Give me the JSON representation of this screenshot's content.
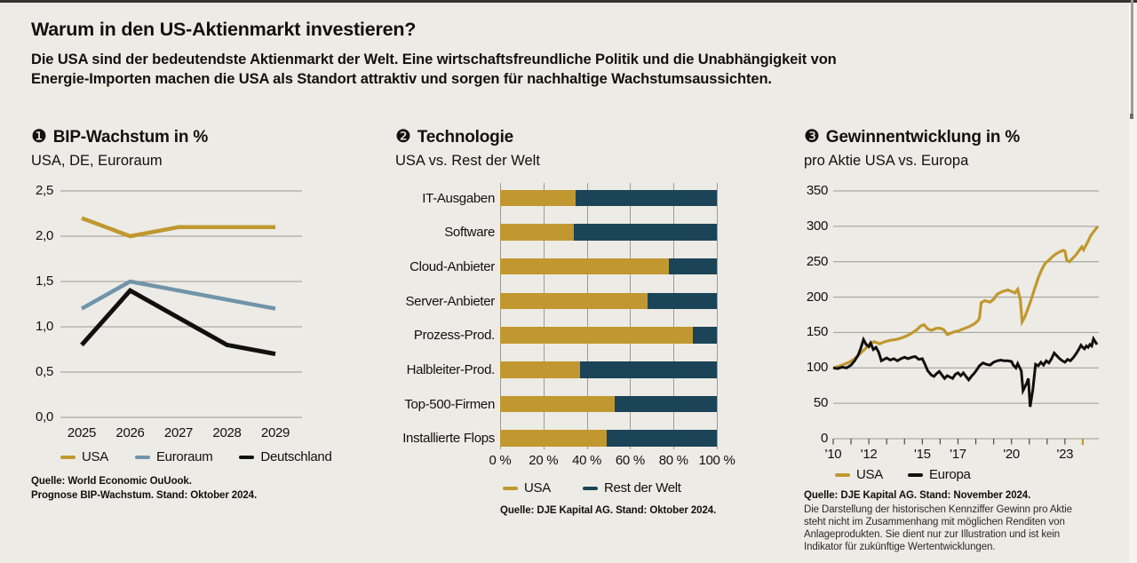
{
  "frame": {
    "top_bar_color": "#34332f",
    "right_rail_color": "#f4f3ef",
    "scroll_line_color": "#9d9d99",
    "scroll_line_cap_color": "#6f6f6b"
  },
  "colors": {
    "background": "#edebe5",
    "text": "#111111",
    "subtext": "#1c1c1c",
    "gold": "#c0982f",
    "blue": "#7094aa",
    "black": "#101010",
    "teal": "#1b4458",
    "grid": "#9b9a95",
    "axis_tick": "#4a4a46"
  },
  "header": {
    "title": "Warum in den US-Aktienmarkt investieren?",
    "subtitle_line1": "Die USA sind der bedeutendste Aktienmarkt der Welt. Eine wirtschaftsfreundliche Politik und die Unabhängigkeit von",
    "subtitle_line2": "Energie-Importen machen die USA als Standort attraktiv und sorgen für nachhaltige Wachstumsaussichten."
  },
  "chart_data": [
    {
      "id": "bip-wachstum",
      "type": "line",
      "number_glyph": "❶",
      "title": "BIP-Wachstum in %",
      "subtitle": "USA, DE, Euroraum",
      "categories": [
        "2025",
        "2026",
        "2027",
        "2028",
        "2029"
      ],
      "ylim": [
        0,
        2.5
      ],
      "yticks": [
        {
          "v": 2.5,
          "label": "2,5"
        },
        {
          "v": 2.0,
          "label": "2,0"
        },
        {
          "v": 1.5,
          "label": "1,5"
        },
        {
          "v": 1.0,
          "label": "1,0"
        },
        {
          "v": 0.5,
          "label": "0,5"
        },
        {
          "v": 0.0,
          "label": "0,0"
        }
      ],
      "series": [
        {
          "name": "USA",
          "color": "gold",
          "width": 4.5,
          "values": [
            2.2,
            2.0,
            2.1,
            2.1,
            2.1
          ]
        },
        {
          "name": "Euroraum",
          "color": "blue",
          "width": 4.5,
          "values": [
            1.2,
            1.5,
            1.4,
            1.3,
            1.2
          ]
        },
        {
          "name": "Deutschland",
          "color": "black",
          "width": 5,
          "values": [
            0.8,
            1.4,
            1.1,
            0.8,
            0.7
          ]
        }
      ],
      "legend": [
        {
          "label": "USA",
          "color": "gold"
        },
        {
          "label": "Euroraum",
          "color": "blue"
        },
        {
          "label": "Deutschland",
          "color": "black"
        }
      ],
      "source_lines": [
        "Quelle: World Economic OuUook.",
        "Prognose BIP-Wachstum. Stand: Oktober 2024."
      ]
    },
    {
      "id": "technologie",
      "type": "stacked-bar-horizontal",
      "number_glyph": "❷",
      "title": "Technologie",
      "subtitle": "USA vs. Rest der Welt",
      "categories": [
        "IT-Ausgaben",
        "Software",
        "Cloud-Anbieter",
        "Server-Anbieter",
        "Prozess-Prod.",
        "Halbleiter-Prod.",
        "Top-500-Firmen",
        "Installierte Flops"
      ],
      "xlim": [
        0,
        100
      ],
      "xticks": [
        {
          "v": 0,
          "label": "0 %"
        },
        {
          "v": 20,
          "label": "20 %"
        },
        {
          "v": 40,
          "label": "40 %"
        },
        {
          "v": 60,
          "label": "60 %"
        },
        {
          "v": 80,
          "label": "80 %"
        },
        {
          "v": 100,
          "label": "100 %"
        }
      ],
      "series": [
        {
          "name": "USA",
          "color": "gold",
          "values": [
            35,
            34,
            78,
            68,
            89,
            37,
            53,
            49
          ]
        },
        {
          "name": "Rest der Welt",
          "color": "teal",
          "values": [
            65,
            66,
            22,
            32,
            11,
            63,
            47,
            51
          ]
        }
      ],
      "legend": [
        {
          "label": "USA",
          "color": "gold"
        },
        {
          "label": "Rest der Welt",
          "color": "teal"
        }
      ],
      "source_lines": [
        "Quelle: DJE Kapital AG. Stand: Oktober 2024."
      ]
    },
    {
      "id": "gewinnentwicklung",
      "type": "line-xy",
      "number_glyph": "❸",
      "title": "Gewinnentwicklung in %",
      "subtitle": "pro Aktie USA vs. Europa",
      "xlim": [
        2010,
        2024.9
      ],
      "ylim": [
        0,
        350
      ],
      "yticks": [
        {
          "v": 350,
          "label": "350"
        },
        {
          "v": 300,
          "label": "300"
        },
        {
          "v": 250,
          "label": "250"
        },
        {
          "v": 200,
          "label": "200"
        },
        {
          "v": 150,
          "label": "150"
        },
        {
          "v": 100,
          "label": "100"
        },
        {
          "v": 50,
          "label": "50"
        },
        {
          "v": 0,
          "label": "0"
        }
      ],
      "xticks_minor_years": [
        2010,
        2011,
        2012,
        2013,
        2014,
        2015,
        2016,
        2017,
        2018,
        2019,
        2020,
        2021,
        2022,
        2023
      ],
      "xtick_labels": [
        {
          "x": 2010,
          "label": "'10"
        },
        {
          "x": 2012,
          "label": "'12"
        },
        {
          "x": 2015,
          "label": "'15"
        },
        {
          "x": 2017,
          "label": "'17"
        },
        {
          "x": 2020,
          "label": "'20"
        },
        {
          "x": 2023,
          "label": "'23"
        }
      ],
      "highlight_tick": {
        "x": 2024,
        "color": "gold"
      },
      "series": [
        {
          "name": "USA",
          "color": "gold",
          "width": 3.2,
          "points": [
            [
              2010.0,
              100
            ],
            [
              2010.3,
              102
            ],
            [
              2010.6,
              105
            ],
            [
              2010.9,
              108
            ],
            [
              2011.2,
              113
            ],
            [
              2011.5,
              120
            ],
            [
              2011.8,
              127
            ],
            [
              2012.0,
              133
            ],
            [
              2012.3,
              137
            ],
            [
              2012.6,
              134
            ],
            [
              2012.9,
              137
            ],
            [
              2013.2,
              139
            ],
            [
              2013.5,
              140
            ],
            [
              2013.8,
              142
            ],
            [
              2014.1,
              145
            ],
            [
              2014.4,
              149
            ],
            [
              2014.7,
              154
            ],
            [
              2014.9,
              159
            ],
            [
              2015.1,
              161
            ],
            [
              2015.3,
              155
            ],
            [
              2015.5,
              153
            ],
            [
              2015.8,
              156
            ],
            [
              2016.0,
              156
            ],
            [
              2016.2,
              154
            ],
            [
              2016.4,
              147
            ],
            [
              2016.6,
              149
            ],
            [
              2016.8,
              151
            ],
            [
              2017.0,
              152
            ],
            [
              2017.3,
              155
            ],
            [
              2017.6,
              158
            ],
            [
              2017.9,
              162
            ],
            [
              2018.1,
              166
            ],
            [
              2018.2,
              170
            ],
            [
              2018.3,
              192
            ],
            [
              2018.5,
              195
            ],
            [
              2018.8,
              193
            ],
            [
              2019.0,
              197
            ],
            [
              2019.2,
              204
            ],
            [
              2019.5,
              208
            ],
            [
              2019.8,
              210
            ],
            [
              2020.0,
              208
            ],
            [
              2020.2,
              206
            ],
            [
              2020.35,
              211
            ],
            [
              2020.5,
              196
            ],
            [
              2020.6,
              165
            ],
            [
              2020.75,
              172
            ],
            [
              2020.9,
              182
            ],
            [
              2021.1,
              196
            ],
            [
              2021.3,
              212
            ],
            [
              2021.5,
              227
            ],
            [
              2021.7,
              239
            ],
            [
              2021.9,
              248
            ],
            [
              2022.1,
              252
            ],
            [
              2022.3,
              257
            ],
            [
              2022.5,
              261
            ],
            [
              2022.7,
              264
            ],
            [
              2022.9,
              266
            ],
            [
              2023.0,
              265
            ],
            [
              2023.1,
              252
            ],
            [
              2023.25,
              250
            ],
            [
              2023.4,
              254
            ],
            [
              2023.6,
              259
            ],
            [
              2023.8,
              266
            ],
            [
              2023.95,
              271
            ],
            [
              2024.05,
              267
            ],
            [
              2024.15,
              272
            ],
            [
              2024.3,
              279
            ],
            [
              2024.45,
              287
            ],
            [
              2024.6,
              292
            ],
            [
              2024.75,
              297
            ],
            [
              2024.85,
              300
            ]
          ]
        },
        {
          "name": "Europa",
          "color": "black",
          "width": 3,
          "points": [
            [
              2010.0,
              100
            ],
            [
              2010.25,
              99
            ],
            [
              2010.5,
              101
            ],
            [
              2010.75,
              100
            ],
            [
              2011.0,
              104
            ],
            [
              2011.2,
              110
            ],
            [
              2011.4,
              118
            ],
            [
              2011.55,
              128
            ],
            [
              2011.7,
              140
            ],
            [
              2011.85,
              133
            ],
            [
              2012.0,
              130
            ],
            [
              2012.1,
              135
            ],
            [
              2012.25,
              126
            ],
            [
              2012.4,
              129
            ],
            [
              2012.55,
              122
            ],
            [
              2012.7,
              110
            ],
            [
              2012.85,
              112
            ],
            [
              2013.0,
              114
            ],
            [
              2013.2,
              111
            ],
            [
              2013.4,
              113
            ],
            [
              2013.6,
              110
            ],
            [
              2013.8,
              113
            ],
            [
              2014.0,
              115
            ],
            [
              2014.2,
              113
            ],
            [
              2014.4,
              115
            ],
            [
              2014.6,
              116
            ],
            [
              2014.8,
              112
            ],
            [
              2015.0,
              113
            ],
            [
              2015.15,
              105
            ],
            [
              2015.3,
              96
            ],
            [
              2015.5,
              90
            ],
            [
              2015.65,
              88
            ],
            [
              2015.8,
              92
            ],
            [
              2015.95,
              95
            ],
            [
              2016.1,
              90
            ],
            [
              2016.25,
              85
            ],
            [
              2016.4,
              89
            ],
            [
              2016.55,
              87
            ],
            [
              2016.7,
              85
            ],
            [
              2016.85,
              91
            ],
            [
              2017.0,
              93
            ],
            [
              2017.15,
              89
            ],
            [
              2017.3,
              93
            ],
            [
              2017.45,
              88
            ],
            [
              2017.6,
              83
            ],
            [
              2017.75,
              88
            ],
            [
              2017.9,
              92
            ],
            [
              2018.05,
              97
            ],
            [
              2018.2,
              103
            ],
            [
              2018.4,
              107
            ],
            [
              2018.6,
              105
            ],
            [
              2018.8,
              104
            ],
            [
              2019.0,
              108
            ],
            [
              2019.2,
              110
            ],
            [
              2019.4,
              111
            ],
            [
              2019.6,
              110
            ],
            [
              2019.8,
              110
            ],
            [
              2020.0,
              109
            ],
            [
              2020.1,
              104
            ],
            [
              2020.25,
              100
            ],
            [
              2020.35,
              106
            ],
            [
              2020.45,
              101
            ],
            [
              2020.55,
              96
            ],
            [
              2020.65,
              68
            ],
            [
              2020.75,
              73
            ],
            [
              2020.85,
              78
            ],
            [
              2020.95,
              85
            ],
            [
              2021.05,
              45
            ],
            [
              2021.2,
              70
            ],
            [
              2021.35,
              105
            ],
            [
              2021.5,
              103
            ],
            [
              2021.65,
              108
            ],
            [
              2021.8,
              104
            ],
            [
              2021.95,
              110
            ],
            [
              2022.1,
              107
            ],
            [
              2022.25,
              113
            ],
            [
              2022.4,
              121
            ],
            [
              2022.55,
              117
            ],
            [
              2022.7,
              113
            ],
            [
              2022.85,
              110
            ],
            [
              2023.0,
              108
            ],
            [
              2023.15,
              112
            ],
            [
              2023.3,
              110
            ],
            [
              2023.45,
              114
            ],
            [
              2023.6,
              119
            ],
            [
              2023.75,
              125
            ],
            [
              2023.9,
              132
            ],
            [
              2024.0,
              129
            ],
            [
              2024.1,
              127
            ],
            [
              2024.2,
              131
            ],
            [
              2024.3,
              129
            ],
            [
              2024.4,
              133
            ],
            [
              2024.5,
              131
            ],
            [
              2024.6,
              141
            ],
            [
              2024.8,
              133
            ]
          ]
        }
      ],
      "legend": [
        {
          "label": "USA",
          "color": "gold"
        },
        {
          "label": "Europa",
          "color": "black"
        }
      ],
      "source_bold": "Quelle: DJE Kapital AG. Stand: November 2024.",
      "disclaimer_lines": [
        "Die Darstellung der historischen Kennziffer Gewinn pro Aktie",
        "steht nicht im Zusammenhang mit möglichen Renditen von",
        "Anlageprodukten. Sie dient nur zur Illustration und ist kein",
        "Indikator für zukünftige Wertentwicklungen."
      ]
    }
  ]
}
